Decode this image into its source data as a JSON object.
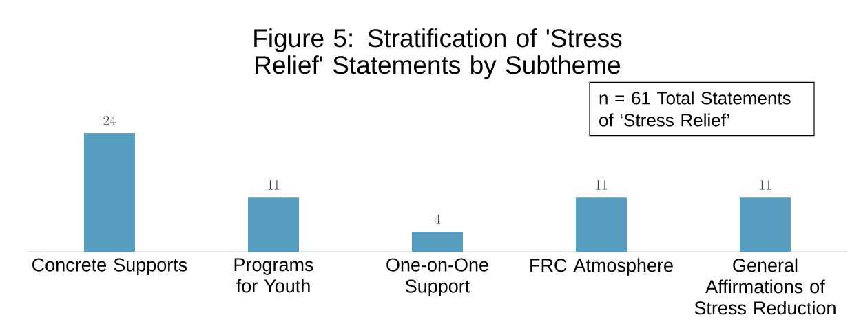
{
  "chart_data": {
    "type": "bar",
    "title": "Figure 5: Stratification of 'Stress Relief' Statements by Subtheme",
    "categories": [
      "Concrete Supports",
      "Programs for Youth",
      "One-on-One Support",
      "FRC Atmosphere",
      "General Affirmations of Stress Reduction"
    ],
    "values": [
      24,
      11,
      4,
      11,
      11
    ],
    "color": "#579dc0",
    "data_labels": true,
    "annotations": [
      "n = 61 Total Statements of ‘Stress Relief’"
    ]
  }
}
